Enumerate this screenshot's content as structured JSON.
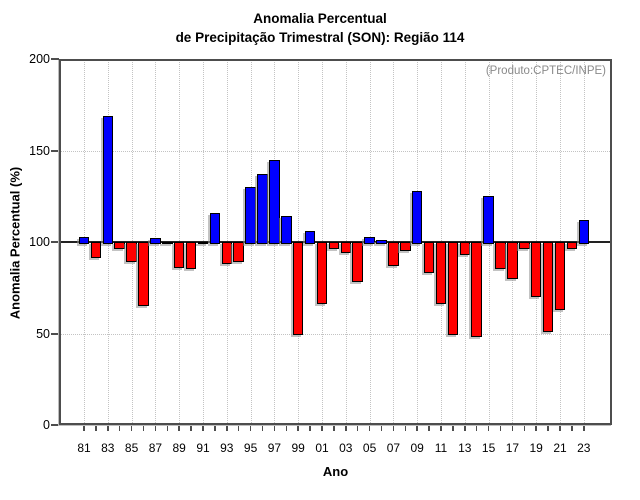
{
  "title": {
    "line1": "Anomalia Percentual",
    "line2": "de Precipitação Trimestral (SON): Região 114"
  },
  "annotation": "(Produto:CPTEC/INPE)",
  "y_axis": {
    "title": "Anomalia Percentual (%)",
    "tick_labels": [
      "0",
      "50",
      "100",
      "150",
      "200"
    ],
    "tick_values": [
      0,
      50,
      100,
      150,
      200
    ],
    "grid_values": [
      50,
      100,
      150
    ]
  },
  "x_axis": {
    "title": "Ano",
    "tick_labels": [
      "81",
      "83",
      "85",
      "87",
      "89",
      "91",
      "93",
      "95",
      "97",
      "99",
      "01",
      "03",
      "05",
      "07",
      "09",
      "11",
      "13",
      "15",
      "17",
      "19",
      "21",
      "23"
    ]
  },
  "chart_data": {
    "type": "bar",
    "title": "Anomalia Percentual de Precipitação Trimestral (SON): Região 114",
    "xlabel": "Ano",
    "ylabel": "Anomalia Percentual (%)",
    "ylim": [
      0,
      200
    ],
    "baseline": 100,
    "grid": "dotted",
    "legend": "none",
    "years": [
      1981,
      1982,
      1983,
      1984,
      1985,
      1986,
      1987,
      1988,
      1989,
      1990,
      1991,
      1992,
      1993,
      1994,
      1995,
      1996,
      1997,
      1998,
      1999,
      2000,
      2001,
      2002,
      2003,
      2004,
      2005,
      2006,
      2007,
      2008,
      2009,
      2010,
      2011,
      2012,
      2013,
      2014,
      2015,
      2016,
      2017,
      2018,
      2019,
      2020,
      2021,
      2022,
      2023
    ],
    "values": [
      103,
      91,
      169,
      96,
      89,
      65,
      102,
      99,
      86,
      85,
      99,
      116,
      88,
      89,
      130,
      137,
      145,
      114,
      49,
      106,
      66,
      96,
      94,
      78,
      103,
      101,
      87,
      95,
      128,
      83,
      66,
      49,
      93,
      48,
      125,
      85,
      80,
      96,
      70,
      51,
      63,
      96,
      112
    ],
    "colors": {
      "above_baseline": "#0000ff",
      "below_baseline": "#ff0000",
      "annotation_text": "#8a8a8a"
    }
  }
}
